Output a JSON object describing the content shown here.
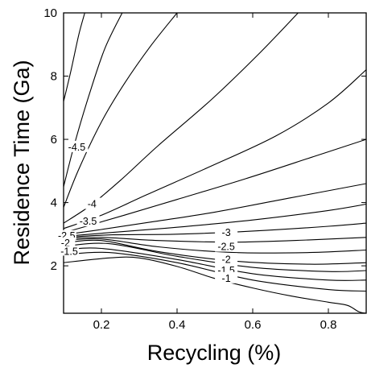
{
  "chart_data": {
    "type": "contour",
    "title": "",
    "xlabel": "Recycling (%)",
    "ylabel": "Residence Time (Ga)",
    "xlim": [
      0.1,
      0.9
    ],
    "ylim": [
      0.5,
      10
    ],
    "x_ticks": [
      "0.2",
      "0.4",
      "0.6",
      "0.8"
    ],
    "y_ticks": [
      "2",
      "4",
      "6",
      "8",
      "10"
    ],
    "grid": false,
    "legend": "none",
    "line_color": "#000000",
    "contours": [
      {
        "level": "-5.5",
        "labeled": false,
        "points": [
          [
            0.1,
            7.2
          ],
          [
            0.12,
            8.2
          ],
          [
            0.14,
            9.3
          ],
          [
            0.156,
            10.0
          ]
        ]
      },
      {
        "level": "-5",
        "labeled": false,
        "points": [
          [
            0.1,
            4.5
          ],
          [
            0.13,
            5.9
          ],
          [
            0.17,
            7.5
          ],
          [
            0.21,
            8.9
          ],
          [
            0.255,
            10.0
          ]
        ]
      },
      {
        "level": "-4.5",
        "labeled": true,
        "label_at": [
          0.135,
          5.75
        ],
        "points": [
          [
            0.1,
            3.85
          ],
          [
            0.14,
            5.05
          ],
          [
            0.2,
            6.55
          ],
          [
            0.26,
            7.75
          ],
          [
            0.33,
            8.95
          ],
          [
            0.4,
            10.0
          ]
        ]
      },
      {
        "level": "-4",
        "labeled": true,
        "label_at": [
          0.175,
          3.95
        ],
        "points": [
          [
            0.1,
            3.35
          ],
          [
            0.17,
            3.9
          ],
          [
            0.25,
            4.7
          ],
          [
            0.35,
            5.8
          ],
          [
            0.49,
            7.25
          ],
          [
            0.62,
            8.75
          ],
          [
            0.72,
            10.0
          ]
        ]
      },
      {
        "level": "-3.75",
        "labeled": false,
        "points": [
          [
            0.1,
            3.18
          ],
          [
            0.2,
            3.6
          ],
          [
            0.32,
            4.25
          ],
          [
            0.48,
            5.1
          ],
          [
            0.66,
            6.1
          ],
          [
            0.8,
            7.15
          ],
          [
            0.9,
            8.2
          ]
        ]
      },
      {
        "level": "-3.5",
        "labeled": true,
        "label_at": [
          0.165,
          3.4
        ],
        "points": [
          [
            0.1,
            3.05
          ],
          [
            0.16,
            3.25
          ],
          [
            0.26,
            3.6
          ],
          [
            0.4,
            4.1
          ],
          [
            0.58,
            4.75
          ],
          [
            0.76,
            5.45
          ],
          [
            0.9,
            6.0
          ]
        ]
      },
      {
        "level": "-3.25",
        "labeled": false,
        "points": [
          [
            0.1,
            2.98
          ],
          [
            0.2,
            3.15
          ],
          [
            0.34,
            3.4
          ],
          [
            0.5,
            3.7
          ],
          [
            0.7,
            4.15
          ],
          [
            0.9,
            4.6
          ]
        ]
      },
      {
        "level": "-3",
        "labeled": true,
        "label_at": [
          0.53,
          3.05
        ],
        "points": [
          [
            0.1,
            2.93
          ],
          [
            0.22,
            3.05
          ],
          [
            0.4,
            3.22
          ],
          [
            0.6,
            3.45
          ],
          [
            0.8,
            3.75
          ],
          [
            0.9,
            3.95
          ]
        ]
      },
      {
        "level": "-2.75",
        "labeled": false,
        "points": [
          [
            0.1,
            2.9
          ],
          [
            0.23,
            2.98
          ],
          [
            0.4,
            3.0
          ],
          [
            0.6,
            3.1
          ],
          [
            0.8,
            3.25
          ],
          [
            0.9,
            3.35
          ]
        ]
      },
      {
        "level": "-2.5",
        "labeled": true,
        "label_at": [
          0.53,
          2.6
        ],
        "points": [
          [
            0.1,
            2.86
          ],
          [
            0.2,
            2.9
          ],
          [
            0.35,
            2.8
          ],
          [
            0.55,
            2.75
          ],
          [
            0.75,
            2.82
          ],
          [
            0.9,
            2.9
          ]
        ]
      },
      {
        "level": "-2.25",
        "labeled": false,
        "points": [
          [
            0.1,
            2.8
          ],
          [
            0.2,
            2.85
          ],
          [
            0.35,
            2.6
          ],
          [
            0.55,
            2.42
          ],
          [
            0.75,
            2.42
          ],
          [
            0.9,
            2.5
          ]
        ]
      },
      {
        "level": "-2",
        "labeled": true,
        "label_at": [
          0.53,
          2.2
        ],
        "points": [
          [
            0.1,
            2.72
          ],
          [
            0.2,
            2.8
          ],
          [
            0.35,
            2.45
          ],
          [
            0.55,
            2.15
          ],
          [
            0.75,
            2.05
          ],
          [
            0.9,
            2.1
          ]
        ]
      },
      {
        "level": "-1.75",
        "labeled": false,
        "points": [
          [
            0.1,
            2.62
          ],
          [
            0.22,
            2.7
          ],
          [
            0.4,
            2.3
          ],
          [
            0.6,
            1.95
          ],
          [
            0.8,
            1.82
          ],
          [
            0.9,
            1.85
          ]
        ]
      },
      {
        "level": "-1.5",
        "labeled": true,
        "label_at": [
          0.53,
          1.85
        ],
        "points": [
          [
            0.1,
            2.5
          ],
          [
            0.2,
            2.55
          ],
          [
            0.4,
            2.2
          ],
          [
            0.6,
            1.75
          ],
          [
            0.8,
            1.55
          ],
          [
            0.9,
            1.55
          ]
        ]
      },
      {
        "level": "-1.25",
        "labeled": false,
        "points": [
          [
            0.1,
            2.35
          ],
          [
            0.22,
            2.42
          ],
          [
            0.4,
            2.1
          ],
          [
            0.6,
            1.55
          ],
          [
            0.8,
            1.25
          ],
          [
            0.9,
            1.2
          ]
        ]
      },
      {
        "level": "-1",
        "labeled": true,
        "label_at": [
          0.53,
          1.6
        ],
        "points": [
          [
            0.1,
            2.1
          ],
          [
            0.22,
            2.25
          ],
          [
            0.3,
            2.25
          ],
          [
            0.4,
            1.98
          ],
          [
            0.5,
            1.6
          ],
          [
            0.6,
            1.3
          ],
          [
            0.7,
            1.05
          ],
          [
            0.8,
            0.85
          ],
          [
            0.85,
            0.75
          ],
          [
            0.88,
            0.55
          ],
          [
            0.9,
            0.5
          ]
        ]
      }
    ],
    "labels_left_cluster": [
      {
        "text": "-2.5",
        "at": [
          0.108,
          2.95
        ]
      },
      {
        "text": "-2",
        "at": [
          0.105,
          2.72
        ]
      },
      {
        "text": "-1.5",
        "at": [
          0.115,
          2.45
        ]
      }
    ]
  }
}
